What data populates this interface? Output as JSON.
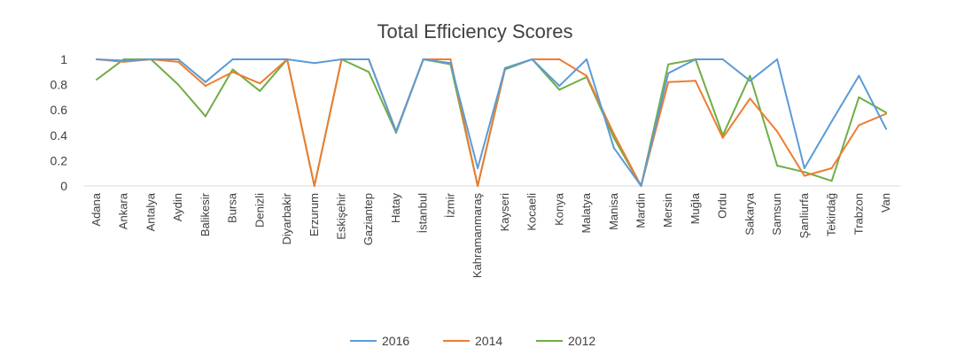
{
  "chart_data": {
    "type": "line",
    "title": "Total Efficiency Scores",
    "xlabel": "",
    "ylabel": "",
    "ylim": [
      0,
      1
    ],
    "yticks": [
      0,
      0.2,
      0.4,
      0.6,
      0.8,
      1
    ],
    "ytick_labels": [
      "0",
      "0.2",
      "0.4",
      "0.6",
      "0.8",
      "1"
    ],
    "grid": false,
    "legend_position": "bottom",
    "categories": [
      "Adana",
      "Ankara",
      "Antalya",
      "Aydin",
      "Balikesir",
      "Bursa",
      "Denizli",
      "Diyarbakir",
      "Erzurum",
      "Eskişehir",
      "Gaziantep",
      "Hatay",
      "İstanbul",
      "İzmir",
      "Kahramanmaraş",
      "Kayseri",
      "Kocaeli",
      "Konya",
      "Malatya",
      "Manisa",
      "Mardin",
      "Mersin",
      "Muğla",
      "Ordu",
      "Sakarya",
      "Samsun",
      "Şanliurfa",
      "Tekirdağ",
      "Trabzon",
      "Van"
    ],
    "series": [
      {
        "name": "2016",
        "color": "#5b9bd5",
        "values": [
          1,
          0.99,
          1,
          1,
          0.82,
          1,
          1,
          1,
          0.97,
          1,
          1,
          0.43,
          1,
          0.97,
          0.14,
          0.93,
          1,
          0.79,
          1,
          0.3,
          0,
          0.89,
          1,
          1,
          0.83,
          1,
          0.14,
          0.51,
          0.87,
          0.45
        ]
      },
      {
        "name": "2014",
        "color": "#ed7d31",
        "values": [
          1,
          0.98,
          1,
          0.98,
          0.79,
          0.9,
          0.81,
          1,
          0,
          1,
          1,
          0.43,
          1,
          1,
          0,
          0.93,
          1,
          1,
          0.87,
          0.41,
          0,
          0.82,
          0.83,
          0.38,
          0.69,
          0.43,
          0.08,
          0.14,
          0.48,
          0.57
        ]
      },
      {
        "name": "2012",
        "color": "#70ad47",
        "values": [
          0.84,
          1,
          1,
          0.8,
          0.55,
          0.92,
          0.75,
          1,
          0,
          1,
          0.9,
          0.42,
          1,
          0.96,
          0,
          0.92,
          1,
          0.76,
          0.86,
          0.38,
          0,
          0.96,
          1,
          0.4,
          0.87,
          0.16,
          0.11,
          0.04,
          0.7,
          0.58
        ]
      }
    ]
  }
}
